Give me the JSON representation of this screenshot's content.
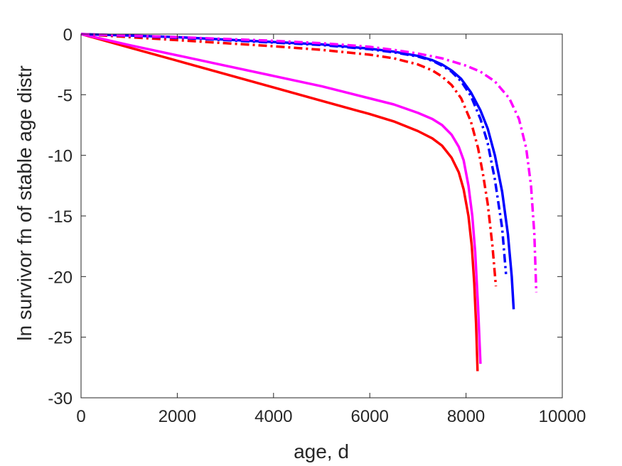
{
  "chart_data": {
    "type": "line",
    "xlabel": "age, d",
    "ylabel": "ln survivor fn of stable age distr",
    "xlim": [
      0,
      10000
    ],
    "ylim": [
      -30,
      0
    ],
    "xticks": [
      0,
      2000,
      4000,
      6000,
      8000,
      10000
    ],
    "xtick_labels": [
      "0",
      "2000",
      "4000",
      "6000",
      "8000",
      "10000"
    ],
    "yticks": [
      0,
      -5,
      -10,
      -15,
      -20,
      -25,
      -30
    ],
    "ytick_labels": [
      "0",
      "-5",
      "-10",
      "-15",
      "-20",
      "-25",
      "-30"
    ],
    "grid": false,
    "box": true,
    "series": [
      {
        "color": "#ff0000",
        "style": "solid",
        "x": [
          0,
          1000,
          2000,
          3000,
          4000,
          5000,
          6000,
          6500,
          7000,
          7300,
          7500,
          7700,
          7850,
          7950,
          8050,
          8120,
          8170,
          8210,
          8240
        ],
        "y": [
          0,
          -1.1,
          -2.2,
          -3.3,
          -4.4,
          -5.5,
          -6.6,
          -7.2,
          -8.0,
          -8.6,
          -9.2,
          -10.2,
          -11.4,
          -12.8,
          -15.0,
          -17.5,
          -20.5,
          -24.0,
          -27.8
        ]
      },
      {
        "color": "#ff00ff",
        "style": "solid",
        "x": [
          0,
          1000,
          2000,
          3000,
          4000,
          5000,
          6000,
          6500,
          7000,
          7300,
          7500,
          7700,
          7850,
          7950,
          8050,
          8130,
          8190,
          8250,
          8300
        ],
        "y": [
          0,
          -0.9,
          -1.75,
          -2.6,
          -3.45,
          -4.3,
          -5.3,
          -5.8,
          -6.5,
          -7.0,
          -7.5,
          -8.3,
          -9.3,
          -10.4,
          -12.5,
          -15.0,
          -18.0,
          -22.5,
          -27.2
        ]
      },
      {
        "color": "#ff0000",
        "style": "dashdot",
        "x": [
          0,
          1000,
          2000,
          3000,
          4000,
          5000,
          6000,
          6500,
          7000,
          7300,
          7500,
          7700,
          7900,
          8100,
          8250,
          8350,
          8450,
          8550,
          8620
        ],
        "y": [
          0,
          -0.25,
          -0.5,
          -0.75,
          -1.0,
          -1.3,
          -1.7,
          -2.0,
          -2.5,
          -3.0,
          -3.5,
          -4.2,
          -5.3,
          -7.2,
          -9.4,
          -11.5,
          -14.0,
          -17.5,
          -20.8
        ]
      },
      {
        "color": "#0000ff",
        "style": "dashdot",
        "x": [
          0,
          1000,
          2000,
          3000,
          4000,
          5000,
          6000,
          6500,
          7000,
          7300,
          7500,
          7700,
          7900,
          8100,
          8300,
          8450,
          8600,
          8750,
          8830
        ],
        "y": [
          0,
          -0.15,
          -0.3,
          -0.5,
          -0.7,
          -0.9,
          -1.25,
          -1.5,
          -1.85,
          -2.2,
          -2.6,
          -3.1,
          -3.9,
          -5.1,
          -7.0,
          -9.0,
          -12.0,
          -16.0,
          -19.8
        ]
      },
      {
        "color": "#0000ff",
        "style": "solid",
        "x": [
          0,
          1000,
          2000,
          3000,
          4000,
          5000,
          6000,
          6500,
          7000,
          7300,
          7500,
          7700,
          7900,
          8100,
          8300,
          8450,
          8600,
          8750,
          8870,
          8950,
          8990
        ],
        "y": [
          0,
          -0.12,
          -0.25,
          -0.45,
          -0.65,
          -0.85,
          -1.2,
          -1.45,
          -1.8,
          -2.15,
          -2.5,
          -3.0,
          -3.7,
          -4.8,
          -6.3,
          -7.8,
          -10.0,
          -13.0,
          -16.5,
          -20.0,
          -22.7
        ]
      },
      {
        "color": "#ff00ff",
        "style": "dashdot",
        "x": [
          0,
          1000,
          2000,
          3000,
          4000,
          5000,
          6000,
          6500,
          7000,
          7500,
          8000,
          8300,
          8600,
          8900,
          9100,
          9250,
          9350,
          9420,
          9460
        ],
        "y": [
          0,
          -0.12,
          -0.25,
          -0.4,
          -0.55,
          -0.75,
          -1.05,
          -1.3,
          -1.6,
          -2.0,
          -2.6,
          -3.1,
          -3.9,
          -5.3,
          -7.0,
          -9.4,
          -12.5,
          -16.5,
          -21.3
        ]
      }
    ]
  }
}
